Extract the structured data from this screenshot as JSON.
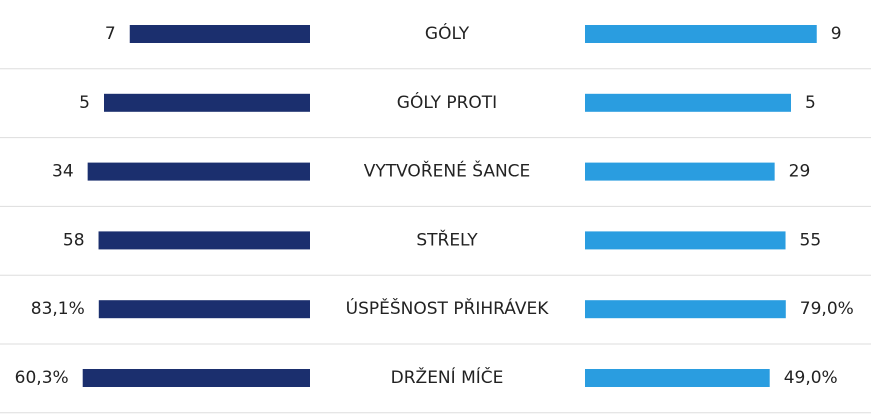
{
  "chart_data": {
    "type": "bar",
    "categories": [
      "GÓLY",
      "GÓLY PROTI",
      "VYTVOŘENÉ ŠANCE",
      "STŘELY",
      "ÚSPĚŠNOST PŘIHRÁVEK",
      "DRŽENÍ MÍČE"
    ],
    "series": [
      {
        "color": "#1b2f6e",
        "values": [
          7,
          5,
          34,
          58,
          83.1,
          60.3
        ],
        "value_labels": [
          "7",
          "5",
          "34",
          "58",
          "83,1%",
          "60,3%"
        ]
      },
      {
        "color": "#2a9de0",
        "values": [
          9,
          5,
          29,
          55,
          79.0,
          49.0
        ],
        "value_labels": [
          "9",
          "5",
          "29",
          "55",
          "79,0%",
          "49,0%"
        ]
      }
    ]
  }
}
